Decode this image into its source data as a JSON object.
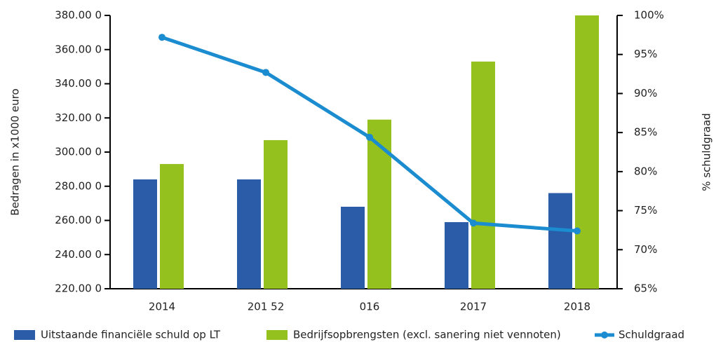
{
  "chart_data": {
    "type": "bar",
    "y_label": "Bedragen in x1000 euro",
    "y2_label": "% schuldgraad",
    "categories": [
      "2014",
      "201 52",
      "016",
      "2017",
      "2018"
    ],
    "series": [
      {
        "name": "Uitstaande financiële schuld op LT",
        "color": "#2a5ca8",
        "type": "bar",
        "values": [
          284,
          284,
          268,
          259,
          276
        ]
      },
      {
        "name": "Bedrijfsopbrengsten (excl. sanering niet vennoten)",
        "color": "#95c11f",
        "type": "bar",
        "values": [
          293,
          307,
          319,
          353,
          380
        ]
      },
      {
        "name": "Schuldgraad",
        "color": "#1a8ccf",
        "type": "line",
        "axis": "y2",
        "values": [
          97.2,
          92.7,
          84.4,
          73.4,
          72.4
        ]
      }
    ],
    "ylim": [
      220,
      380
    ],
    "yticks": [
      {
        "value": 220,
        "label": "220.00 0"
      },
      {
        "value": 240,
        "label": "240.00 0"
      },
      {
        "value": 260,
        "label": "260.00 0"
      },
      {
        "value": 280,
        "label": "280.00 0"
      },
      {
        "value": 300,
        "label": "300.00 0"
      },
      {
        "value": 320,
        "label": "320.00 0"
      },
      {
        "value": 340,
        "label": "340.00 0"
      },
      {
        "value": 360,
        "label": "360.00 0"
      },
      {
        "value": 380,
        "label": "380.00 0"
      }
    ],
    "y2lim": [
      65,
      100
    ],
    "y2ticks": [
      {
        "value": 65,
        "label": "65%"
      },
      {
        "value": 70,
        "label": "70%"
      },
      {
        "value": 75,
        "label": "75%"
      },
      {
        "value": 80,
        "label": "80%"
      },
      {
        "value": 85,
        "label": "85%"
      },
      {
        "value": 90,
        "label": "90%"
      },
      {
        "value": 95,
        "label": "95%"
      },
      {
        "value": 100,
        "label": "100%"
      }
    ]
  }
}
